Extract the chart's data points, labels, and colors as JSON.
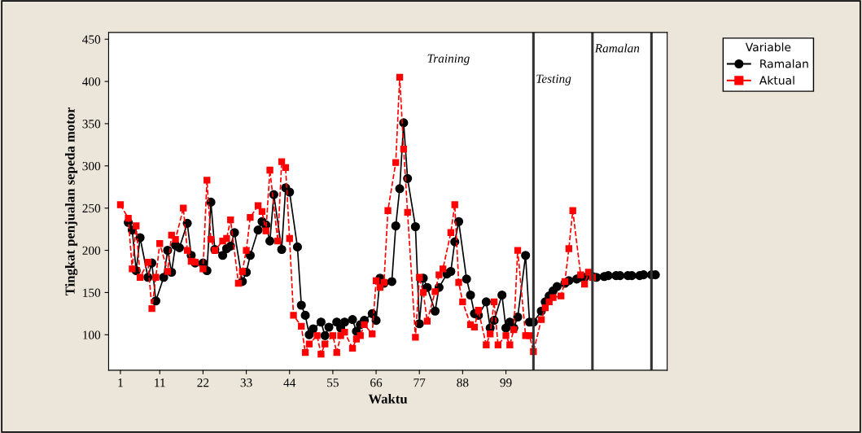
{
  "chart_data": {
    "type": "line",
    "xlabel": "Waktu",
    "ylabel": "Tingkat penjualan sepeda motor",
    "legend_title": "Variable",
    "xlim": [
      -2,
      140
    ],
    "xticks": [
      1,
      11,
      22,
      33,
      44,
      55,
      66,
      77,
      88,
      99
    ],
    "ylim": [
      58,
      458
    ],
    "yticks": [
      100,
      150,
      200,
      250,
      300,
      350,
      400,
      450
    ],
    "grid": false,
    "legend": "right",
    "series": [
      {
        "name": "Ramalan",
        "color": "#000000",
        "marker": "circle",
        "line_style": "solid",
        "x": [
          3,
          4,
          5,
          6,
          8,
          9,
          10,
          12,
          13,
          14,
          15,
          16,
          18,
          19,
          20,
          22,
          23,
          24,
          25,
          27,
          28,
          29,
          30,
          32,
          33,
          34,
          36,
          37,
          38,
          39,
          40,
          42,
          43,
          44,
          46,
          47,
          48,
          49,
          50,
          52,
          53,
          54,
          56,
          57,
          58,
          60,
          61,
          62,
          63,
          65,
          66,
          67,
          68,
          70,
          71,
          72,
          73,
          74,
          76,
          77,
          78,
          79,
          81,
          82,
          84,
          85,
          86,
          87,
          89,
          90,
          91,
          92,
          94,
          95,
          96,
          98,
          99,
          100,
          101,
          102,
          104,
          105,
          106,
          108,
          109,
          110,
          111,
          112,
          114,
          115,
          117,
          118,
          119,
          121,
          122,
          124,
          125,
          127,
          128,
          130,
          131,
          133,
          134,
          136,
          137
        ],
        "values": [
          233,
          224,
          176,
          215,
          168,
          185,
          140,
          168,
          200,
          174,
          206,
          203,
          232,
          194,
          185,
          185,
          176,
          257,
          201,
          194,
          202,
          205,
          221,
          163,
          174,
          194,
          224,
          234,
          230,
          211,
          266,
          201,
          274,
          269,
          204,
          135,
          123,
          100,
          107,
          115,
          99,
          109,
          115,
          108,
          115,
          118,
          104,
          112,
          117,
          125,
          117,
          167,
          161,
          163,
          229,
          273,
          351,
          285,
          228,
          113,
          167,
          156,
          128,
          156,
          172,
          175,
          210,
          234,
          166,
          147,
          125,
          123,
          139,
          108,
          117,
          147,
          108,
          115,
          108,
          121,
          194,
          115,
          115,
          128,
          139,
          146,
          152,
          157,
          161,
          164,
          166,
          168,
          168,
          169,
          168,
          169,
          170,
          170,
          170,
          170,
          170,
          170,
          171,
          171,
          171
        ]
      },
      {
        "name": "Aktual",
        "color": "#ff0000",
        "marker": "square",
        "line_style": "dashed",
        "x": [
          1,
          3,
          4,
          5,
          6,
          8,
          9,
          10,
          11,
          13,
          14,
          15,
          17,
          18,
          19,
          20,
          22,
          23,
          24,
          25,
          27,
          28,
          29,
          31,
          32,
          33,
          34,
          36,
          37,
          38,
          39,
          41,
          42,
          43,
          44,
          45,
          47,
          48,
          49,
          51,
          52,
          53,
          55,
          56,
          57,
          58,
          60,
          61,
          62,
          63,
          65,
          66,
          67,
          68,
          69,
          71,
          72,
          73,
          74,
          76,
          77,
          78,
          79,
          81,
          82,
          83,
          85,
          86,
          87,
          88,
          90,
          91,
          92,
          94,
          95,
          96,
          97,
          99,
          100,
          101,
          102,
          104,
          105,
          106,
          108,
          109,
          110,
          111,
          113,
          114,
          115,
          116,
          118,
          119,
          120,
          121
        ],
        "values": [
          254,
          238,
          178,
          229,
          168,
          186,
          131,
          168,
          208,
          175,
          218,
          213,
          250,
          200,
          187,
          186,
          178,
          283,
          213,
          200,
          211,
          214,
          236,
          161,
          175,
          200,
          239,
          253,
          246,
          223,
          295,
          211,
          305,
          298,
          214,
          123,
          110,
          79,
          89,
          99,
          77,
          89,
          99,
          79,
          99,
          103,
          84,
          95,
          99,
          112,
          101,
          164,
          156,
          162,
          247,
          304,
          405,
          320,
          245,
          97,
          168,
          150,
          116,
          151,
          171,
          178,
          221,
          254,
          162,
          139,
          112,
          109,
          129,
          88,
          101,
          139,
          88,
          99,
          88,
          106,
          200,
          99,
          99,
          80,
          118,
          132,
          139,
          144,
          146,
          163,
          202,
          247,
          171,
          160,
          174,
          168
        ]
      }
    ],
    "ref_lines": [
      {
        "axis": "x",
        "value": 106,
        "color": "#333333"
      },
      {
        "axis": "x",
        "value": 121,
        "color": "#333333"
      },
      {
        "axis": "x",
        "value": 136,
        "color": "#333333"
      }
    ],
    "annotations": [
      "Training",
      "Testing",
      "Ramalan"
    ]
  }
}
